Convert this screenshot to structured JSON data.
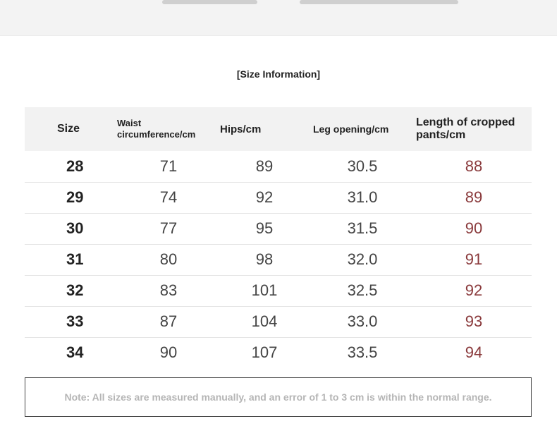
{
  "title": "[Size Information]",
  "table": {
    "headers": [
      "Size",
      "Waist circumference/cm",
      "Hips/cm",
      "Leg opening/cm",
      "Length of cropped pants/cm"
    ],
    "rows": [
      [
        "28",
        "71",
        "89",
        "30.5",
        "88"
      ],
      [
        "29",
        "74",
        "92",
        "31.0",
        "89"
      ],
      [
        "30",
        "77",
        "95",
        "31.5",
        "90"
      ],
      [
        "31",
        "80",
        "98",
        "32.0",
        "91"
      ],
      [
        "32",
        "83",
        "101",
        "32.5",
        "92"
      ],
      [
        "33",
        "87",
        "104",
        "33.0",
        "93"
      ],
      [
        "34",
        "90",
        "107",
        "33.5",
        "94"
      ]
    ]
  },
  "note": "Note: All sizes are measured manually, and an error of 1 to 3 cm is within the normal range.",
  "colors": {
    "length_values": "#8a3a3c",
    "header_background": "#f2f2f2",
    "note_text": "#b5b5b5"
  }
}
